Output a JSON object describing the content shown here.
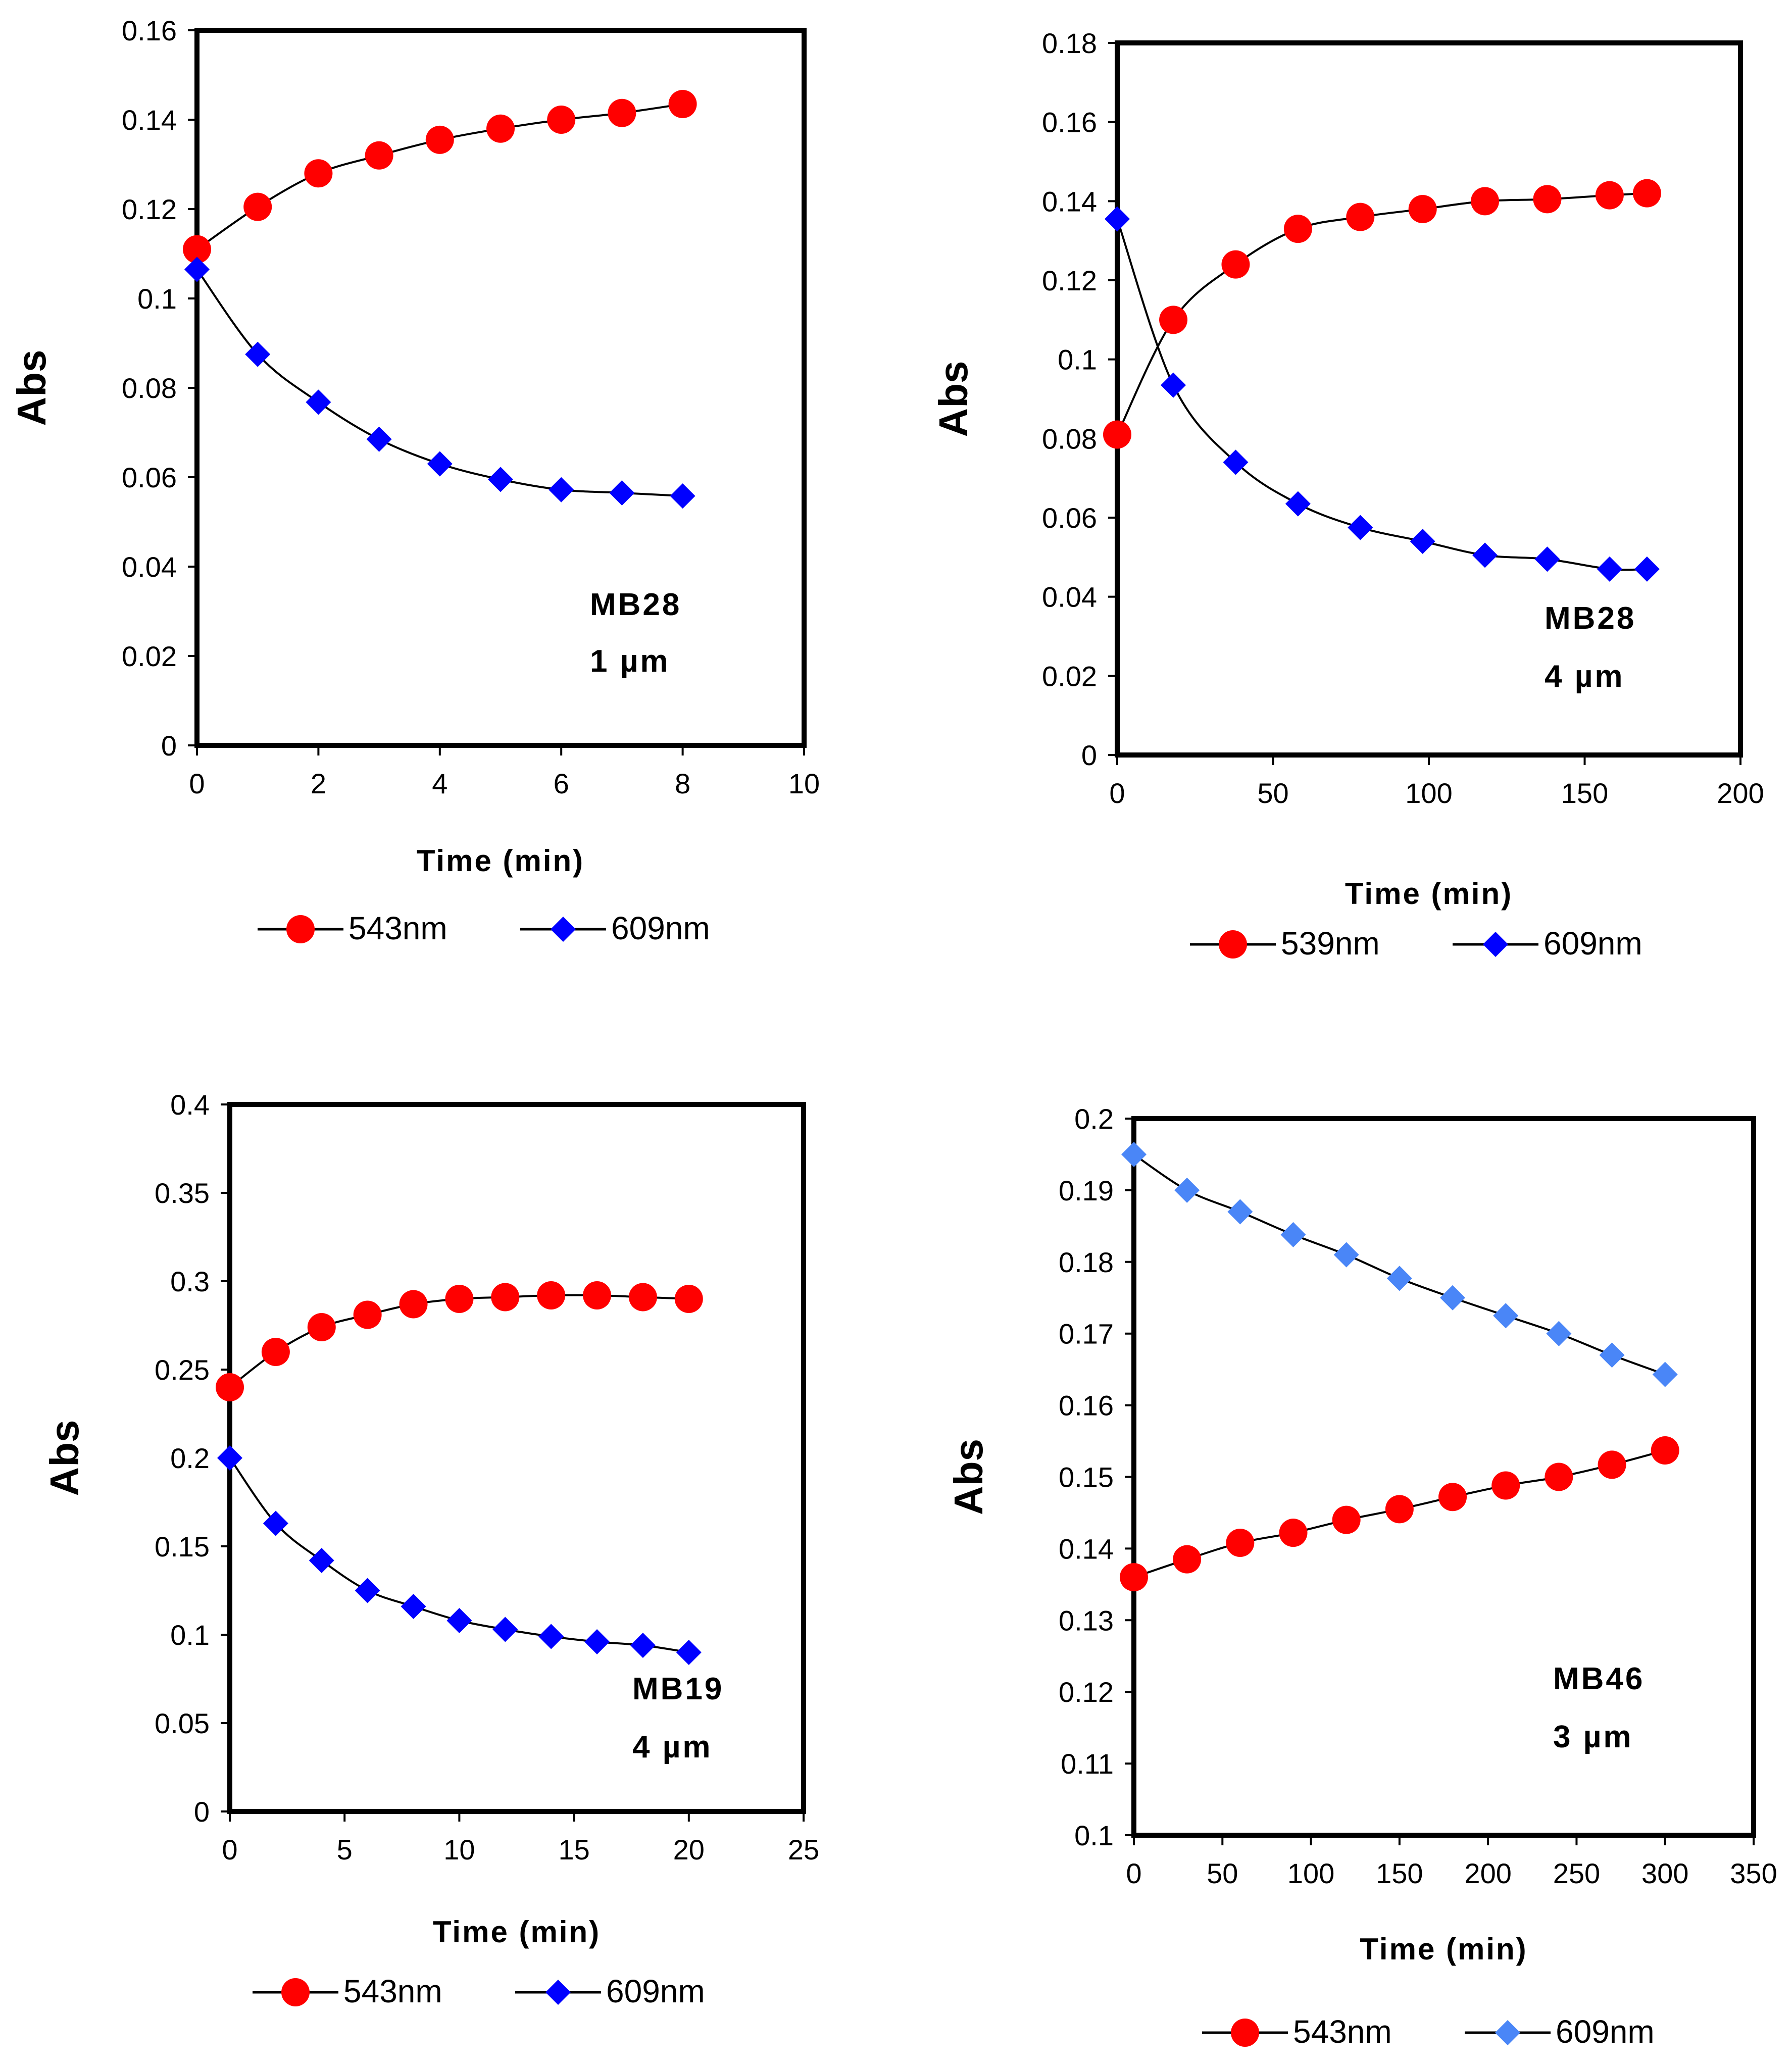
{
  "chart_data": [
    {
      "type": "line",
      "xlabel": "Time (min)",
      "ylabel": "Abs",
      "xlim": [
        0,
        10
      ],
      "ylim": [
        0,
        0.16
      ],
      "x_ticks": [
        "0",
        "2",
        "4",
        "6",
        "8",
        "10"
      ],
      "y_ticks": [
        "0",
        "0.02",
        "0.04",
        "0.06",
        "0.08",
        "0.1",
        "0.12",
        "0.14",
        "0.16"
      ],
      "annotation": [
        "MB28",
        "1 µm"
      ],
      "x": [
        0,
        1,
        2,
        3,
        4,
        5,
        6,
        7,
        8
      ],
      "series": [
        {
          "name": "543nm",
          "marker": "circle",
          "color": "#ff0000",
          "values": [
            0.111,
            0.1205,
            0.128,
            0.132,
            0.1355,
            0.138,
            0.14,
            0.1415,
            0.1435
          ]
        },
        {
          "name": "609nm",
          "marker": "diamond",
          "color": "#0000ff",
          "values": [
            0.1065,
            0.0875,
            0.0768,
            0.0685,
            0.063,
            0.0595,
            0.0572,
            0.0565,
            0.0558
          ]
        }
      ]
    },
    {
      "type": "line",
      "xlabel": "Time (min)",
      "ylabel": "Abs",
      "xlim": [
        0,
        200
      ],
      "ylim": [
        0,
        0.18
      ],
      "x_ticks": [
        "0",
        "50",
        "100",
        "150",
        "200"
      ],
      "y_ticks": [
        "0",
        "0.02",
        "0.04",
        "0.06",
        "0.08",
        "0.1",
        "0.12",
        "0.14",
        "0.16",
        "0.18"
      ],
      "annotation": [
        "MB28",
        "4 µm"
      ],
      "x": [
        0,
        18,
        38,
        58,
        78,
        98,
        118,
        138,
        158,
        170
      ],
      "series": [
        {
          "name": "539nm",
          "marker": "circle",
          "color": "#ff0000",
          "values": [
            0.081,
            0.11,
            0.124,
            0.133,
            0.136,
            0.138,
            0.14,
            0.1405,
            0.1415,
            0.142
          ]
        },
        {
          "name": "609nm",
          "marker": "diamond",
          "color": "#0000ff",
          "values": [
            0.1355,
            0.0935,
            0.074,
            0.0635,
            0.0575,
            0.054,
            0.0505,
            0.0495,
            0.047,
            0.047
          ]
        }
      ]
    },
    {
      "type": "line",
      "xlabel": "Time (min)",
      "ylabel": "Abs",
      "xlim": [
        0,
        25
      ],
      "ylim": [
        0,
        0.4
      ],
      "x_ticks": [
        "0",
        "5",
        "10",
        "15",
        "20",
        "25"
      ],
      "y_ticks": [
        "0",
        "0.05",
        "0.1",
        "0.15",
        "0.2",
        "0.25",
        "0.3",
        "0.35",
        "0.4"
      ],
      "annotation": [
        "MB19",
        "4 µm"
      ],
      "x": [
        0,
        2,
        4,
        6,
        8,
        10,
        12,
        14,
        16,
        18,
        20
      ],
      "series": [
        {
          "name": "543nm",
          "marker": "circle",
          "color": "#ff0000",
          "values": [
            0.24,
            0.26,
            0.274,
            0.281,
            0.287,
            0.29,
            0.291,
            0.292,
            0.292,
            0.291,
            0.29
          ]
        },
        {
          "name": "609nm",
          "marker": "diamond",
          "color": "#0000ff",
          "values": [
            0.2,
            0.163,
            0.142,
            0.125,
            0.116,
            0.108,
            0.103,
            0.099,
            0.096,
            0.094,
            0.09
          ]
        }
      ]
    },
    {
      "type": "line",
      "xlabel": "Time (min)",
      "ylabel": "Abs",
      "xlim": [
        0,
        350
      ],
      "ylim": [
        0.1,
        0.2
      ],
      "x_ticks": [
        "0",
        "50",
        "100",
        "150",
        "200",
        "250",
        "300",
        "350"
      ],
      "y_ticks": [
        "0.1",
        "0.11",
        "0.12",
        "0.13",
        "0.14",
        "0.15",
        "0.16",
        "0.17",
        "0.18",
        "0.19",
        "0.2"
      ],
      "annotation": [
        "MB46",
        "3 µm"
      ],
      "x": [
        0,
        30,
        60,
        90,
        120,
        150,
        180,
        210,
        240,
        270,
        300
      ],
      "series": [
        {
          "name": "543nm",
          "marker": "circle",
          "color": "#ff0000",
          "values": [
            0.136,
            0.1385,
            0.1408,
            0.1422,
            0.144,
            0.1455,
            0.1472,
            0.1488,
            0.15,
            0.1517,
            0.1537
          ]
        },
        {
          "name": "609nm",
          "marker": "diamond",
          "color": "#4a86f7",
          "values": [
            0.195,
            0.19,
            0.187,
            0.1838,
            0.181,
            0.1777,
            0.175,
            0.1725,
            0.17,
            0.167,
            0.1643
          ]
        }
      ]
    }
  ]
}
